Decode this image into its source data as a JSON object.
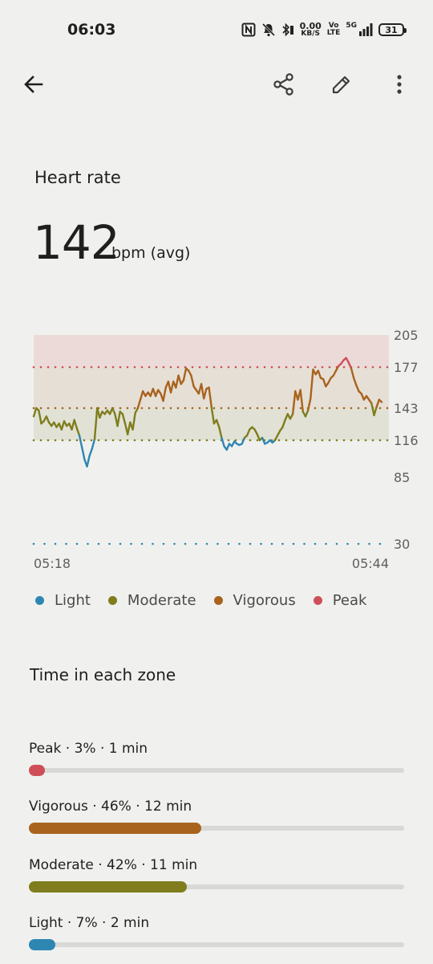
{
  "status_bar": {
    "time": "06:03",
    "net_speed_value": "0.00",
    "net_speed_unit": "KB/S",
    "volte_top": "Vo",
    "volte_bottom": "LTE",
    "network": "5G",
    "battery": "31"
  },
  "toolbar": {
    "back_icon": "arrow-back-icon",
    "share_icon": "share-icon",
    "edit_icon": "pencil-icon",
    "more_icon": "more-vert-icon"
  },
  "header": {
    "title": "Heart rate",
    "avg_value": "142",
    "avg_unit": "bpm (avg)"
  },
  "colors": {
    "light": "#2e86b3",
    "moderate": "#7f7d1d",
    "vigorous": "#a8631e",
    "peak": "#cf4f58"
  },
  "chart_data": {
    "type": "line",
    "x_labels": [
      "05:18",
      "05:44"
    ],
    "y_ticks": [
      205,
      177,
      143,
      116,
      85,
      30
    ],
    "zone_thresholds": {
      "light_moderate": 116,
      "moderate_vigorous": 143,
      "vigorous_peak": 177
    },
    "series": [
      {
        "values": [
          136,
          143,
          141,
          130,
          132,
          136,
          131,
          128,
          131,
          127,
          130,
          125,
          132,
          128,
          130,
          125,
          133,
          126,
          120,
          110,
          100,
          94,
          103,
          109,
          117,
          143,
          135,
          140,
          138,
          141,
          138,
          143,
          138,
          128,
          140,
          138,
          130,
          121,
          131,
          125,
          139,
          143,
          150,
          157,
          153,
          156,
          153,
          159,
          153,
          158,
          155,
          149,
          160,
          165,
          156,
          165,
          160,
          170,
          163,
          166,
          176,
          174,
          170,
          161,
          158,
          155,
          163,
          151,
          159,
          160,
          144,
          130,
          133,
          127,
          118,
          111,
          108,
          113,
          111,
          115,
          113,
          112,
          113,
          118,
          120,
          125,
          127,
          125,
          121,
          116,
          118,
          113,
          114,
          116,
          114,
          116,
          120,
          124,
          127,
          133,
          138,
          134,
          138,
          157,
          150,
          158,
          140,
          136,
          141,
          151,
          175,
          171,
          174,
          168,
          167,
          161,
          164,
          168,
          170,
          174,
          178,
          180,
          183,
          185,
          181,
          176,
          168,
          162,
          157,
          155,
          150,
          153,
          150,
          147,
          137,
          144,
          150,
          148
        ]
      }
    ],
    "ylim": [
      30,
      205
    ],
    "grid": false
  },
  "legend": [
    {
      "label": "Light",
      "color": "#2e86b3"
    },
    {
      "label": "Moderate",
      "color": "#7f7d1d"
    },
    {
      "label": "Vigorous",
      "color": "#a8631e"
    },
    {
      "label": "Peak",
      "color": "#cf4f58"
    }
  ],
  "zones": {
    "title": "Time in each zone",
    "items": [
      {
        "label": "Peak · 3% · 1 min",
        "percent": 3,
        "color": "#cf4f58"
      },
      {
        "label": "Vigorous · 46% · 12 min",
        "percent": 46,
        "color": "#a8631e"
      },
      {
        "label": "Moderate · 42% · 11 min",
        "percent": 42,
        "color": "#7f7d1d"
      },
      {
        "label": "Light · 7% · 2 min",
        "percent": 7,
        "color": "#2e86b3"
      }
    ]
  }
}
